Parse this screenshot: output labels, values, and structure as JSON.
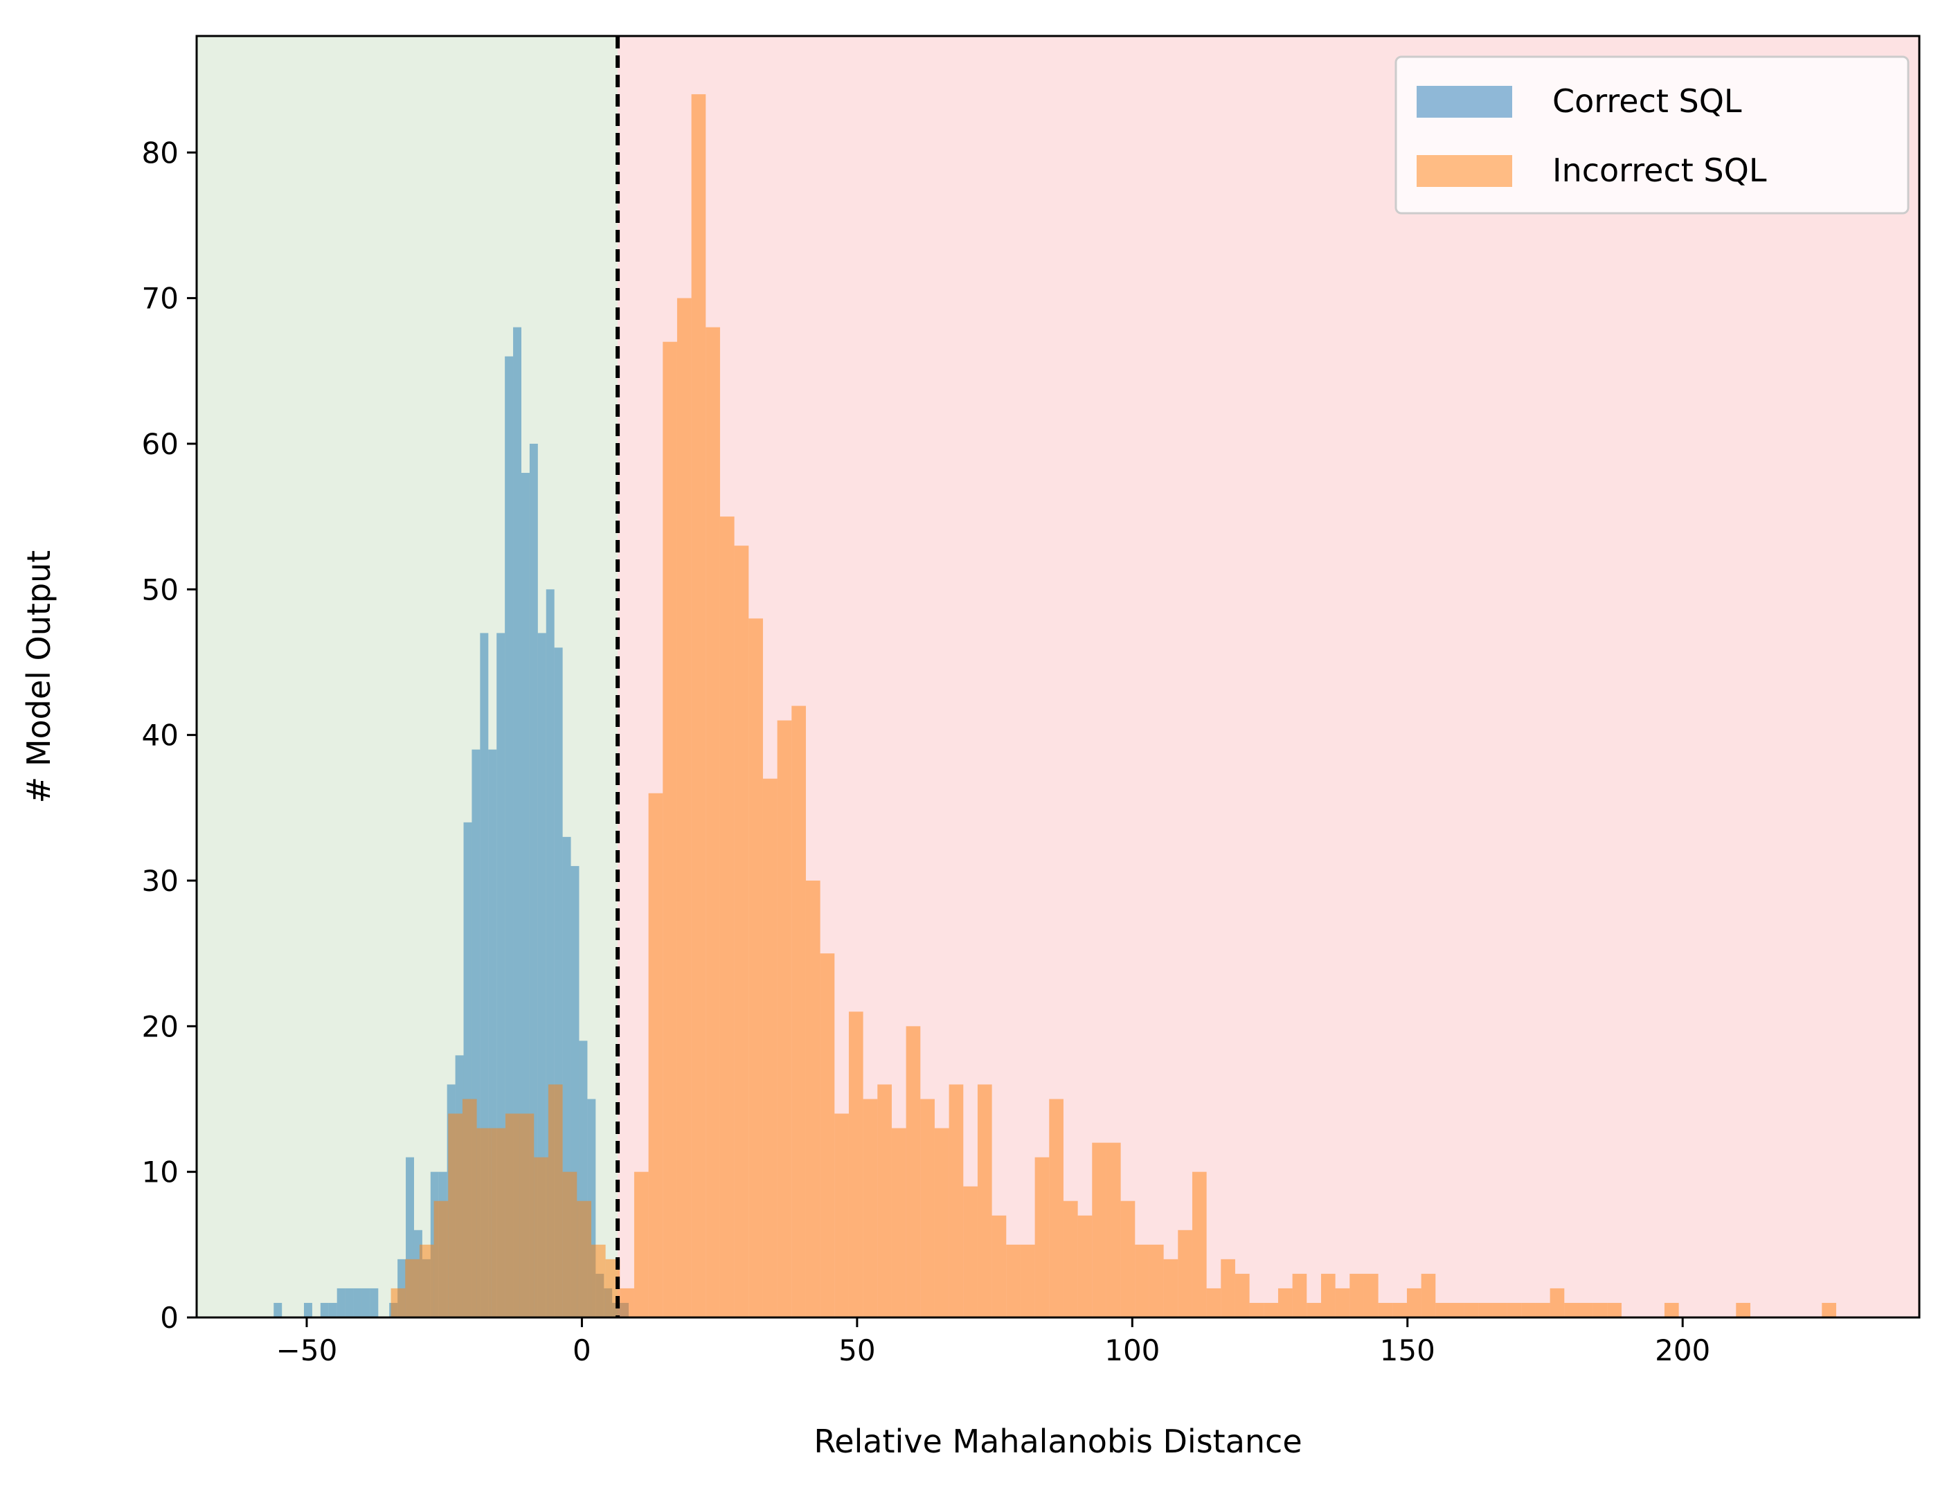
{
  "chart_data": {
    "type": "histogram",
    "xlabel": "Relative Mahalanobis Distance",
    "ylabel": "# Model Output",
    "xlim": [
      -70,
      243
    ],
    "ylim": [
      0,
      88
    ],
    "xticks": [
      -50,
      0,
      50,
      100,
      150,
      200
    ],
    "yticks": [
      0,
      10,
      20,
      30,
      40,
      50,
      60,
      70,
      80
    ],
    "xtick_labels": [
      "−50",
      "0",
      "50",
      "100",
      "150",
      "200"
    ],
    "ytick_labels": [
      "0",
      "10",
      "20",
      "30",
      "40",
      "50",
      "60",
      "70",
      "80"
    ],
    "threshold": 6.5,
    "regions": [
      {
        "name": "correct-region",
        "from": -70,
        "to": 6.5,
        "color": "#e6f0e3"
      },
      {
        "name": "incorrect-region",
        "from": 6.5,
        "to": 243,
        "color": "#fde2e3"
      }
    ],
    "legend_position": "upper right",
    "series": [
      {
        "name": "Correct SQL",
        "color": "#1f77b4",
        "alpha": 0.5,
        "bin_width": 1.5,
        "bins": [
          [
            -56,
            1
          ],
          [
            -50.5,
            1
          ],
          [
            -47.5,
            1
          ],
          [
            -46,
            1
          ],
          [
            -44.5,
            2
          ],
          [
            -43,
            2
          ],
          [
            -41.5,
            2
          ],
          [
            -40,
            2
          ],
          [
            -38.5,
            2
          ],
          [
            -35,
            1
          ],
          [
            -33.5,
            4
          ],
          [
            -32,
            11
          ],
          [
            -30.5,
            6
          ],
          [
            -29,
            4
          ],
          [
            -27.5,
            10
          ],
          [
            -26,
            10
          ],
          [
            -24.5,
            16
          ],
          [
            -23,
            18
          ],
          [
            -21.5,
            34
          ],
          [
            -20,
            39
          ],
          [
            -18.5,
            47
          ],
          [
            -17,
            39
          ],
          [
            -15.5,
            47
          ],
          [
            -14,
            66
          ],
          [
            -12.5,
            68
          ],
          [
            -11,
            58
          ],
          [
            -9.5,
            60
          ],
          [
            -8,
            47
          ],
          [
            -6.5,
            50
          ],
          [
            -5,
            46
          ],
          [
            -3.5,
            33
          ],
          [
            -2,
            31
          ],
          [
            -0.5,
            19
          ],
          [
            1,
            15
          ],
          [
            2.5,
            3
          ],
          [
            4,
            2
          ],
          [
            5.5,
            1
          ],
          [
            7,
            1
          ]
        ]
      },
      {
        "name": "Incorrect SQL",
        "color": "#ff7f0e",
        "alpha": 0.5,
        "bin_width": 2.6,
        "bins": [
          [
            -34.7,
            2
          ],
          [
            -32.1,
            4
          ],
          [
            -29.5,
            5
          ],
          [
            -26.9,
            8
          ],
          [
            -24.3,
            14
          ],
          [
            -21.7,
            15
          ],
          [
            -19.1,
            13
          ],
          [
            -16.5,
            13
          ],
          [
            -13.9,
            14
          ],
          [
            -11.3,
            14
          ],
          [
            -8.7,
            11
          ],
          [
            -6.1,
            16
          ],
          [
            -3.5,
            10
          ],
          [
            -0.9,
            8
          ],
          [
            1.7,
            5
          ],
          [
            4.3,
            4
          ],
          [
            6.9,
            2
          ],
          [
            9.5,
            10
          ],
          [
            12.1,
            36
          ],
          [
            14.7,
            67
          ],
          [
            17.3,
            70
          ],
          [
            19.9,
            84
          ],
          [
            22.5,
            68
          ],
          [
            25.1,
            55
          ],
          [
            27.7,
            53
          ],
          [
            30.3,
            48
          ],
          [
            32.9,
            37
          ],
          [
            35.5,
            41
          ],
          [
            38.1,
            42
          ],
          [
            40.7,
            30
          ],
          [
            43.3,
            25
          ],
          [
            45.9,
            14
          ],
          [
            48.5,
            21
          ],
          [
            51.1,
            15
          ],
          [
            53.7,
            16
          ],
          [
            56.3,
            13
          ],
          [
            58.9,
            20
          ],
          [
            61.5,
            15
          ],
          [
            64.1,
            13
          ],
          [
            66.7,
            16
          ],
          [
            69.3,
            9
          ],
          [
            71.9,
            16
          ],
          [
            74.5,
            7
          ],
          [
            77.1,
            5
          ],
          [
            79.7,
            5
          ],
          [
            82.3,
            11
          ],
          [
            84.9,
            15
          ],
          [
            87.5,
            8
          ],
          [
            90.1,
            7
          ],
          [
            92.7,
            12
          ],
          [
            95.3,
            12
          ],
          [
            97.9,
            8
          ],
          [
            100.5,
            5
          ],
          [
            103.1,
            5
          ],
          [
            105.7,
            4
          ],
          [
            108.3,
            6
          ],
          [
            110.9,
            10
          ],
          [
            113.5,
            2
          ],
          [
            116.1,
            4
          ],
          [
            118.7,
            3
          ],
          [
            121.3,
            1
          ],
          [
            123.9,
            1
          ],
          [
            126.5,
            2
          ],
          [
            129.1,
            3
          ],
          [
            131.7,
            1
          ],
          [
            134.3,
            3
          ],
          [
            136.9,
            2
          ],
          [
            139.5,
            3
          ],
          [
            142.1,
            3
          ],
          [
            144.7,
            1
          ],
          [
            147.3,
            1
          ],
          [
            149.9,
            2
          ],
          [
            152.5,
            3
          ],
          [
            155.1,
            1
          ],
          [
            157.7,
            1
          ],
          [
            160.3,
            1
          ],
          [
            162.9,
            1
          ],
          [
            165.5,
            1
          ],
          [
            168.1,
            1
          ],
          [
            170.7,
            1
          ],
          [
            173.3,
            1
          ],
          [
            175.9,
            2
          ],
          [
            178.5,
            1
          ],
          [
            181.1,
            1
          ],
          [
            183.7,
            1
          ],
          [
            186.3,
            1
          ],
          [
            196.7,
            1
          ],
          [
            209.7,
            1
          ],
          [
            225.3,
            1
          ]
        ]
      }
    ]
  }
}
